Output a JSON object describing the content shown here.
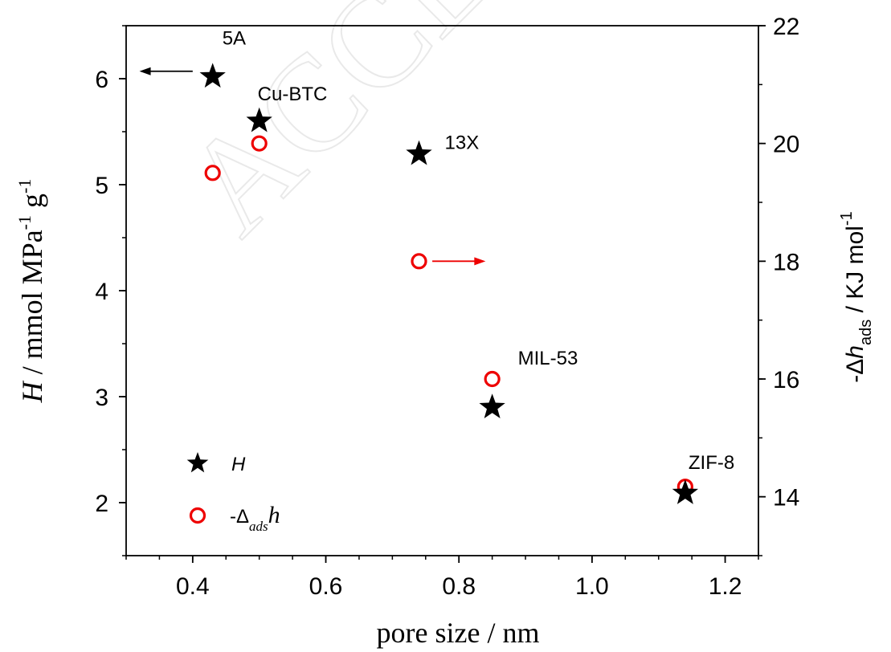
{
  "chart_data": {
    "type": "scatter",
    "title": "",
    "watermark": "ACCEPTED",
    "xlabel": "pore size / nm",
    "y_left_label": {
      "symbol": "H",
      "text": " / mmol MPa",
      "sup1": "-1",
      "text2": " g",
      "sup2": "-1"
    },
    "y_right_label": {
      "prefix": "-Δ",
      "symbol": "h",
      "sub": "ads",
      "text": " / KJ mol",
      "sup": "-1"
    },
    "xlim": [
      0.3,
      1.25
    ],
    "ylim_left": [
      1.5,
      6.5
    ],
    "ylim_right": [
      13,
      22
    ],
    "x_ticks": [
      {
        "v": 0.4,
        "label": "0.4"
      },
      {
        "v": 0.6,
        "label": "0.6"
      },
      {
        "v": 0.8,
        "label": "0.8"
      },
      {
        "v": 1.0,
        "label": "1.0"
      },
      {
        "v": 1.2,
        "label": "1.2"
      }
    ],
    "y_left_ticks": [
      {
        "v": 2,
        "label": "2"
      },
      {
        "v": 3,
        "label": "3"
      },
      {
        "v": 4,
        "label": "4"
      },
      {
        "v": 5,
        "label": "5"
      },
      {
        "v": 6,
        "label": "6"
      }
    ],
    "y_right_ticks": [
      {
        "v": 14,
        "label": "14"
      },
      {
        "v": 16,
        "label": "16"
      },
      {
        "v": 18,
        "label": "18"
      },
      {
        "v": 20,
        "label": "20"
      },
      {
        "v": 22,
        "label": "22"
      }
    ],
    "series": [
      {
        "name": "H",
        "axis": "left",
        "marker": "filled-star",
        "color": "#000000",
        "points": [
          {
            "x": 0.43,
            "y": 6.02
          },
          {
            "x": 0.5,
            "y": 5.6
          },
          {
            "x": 0.74,
            "y": 5.29
          },
          {
            "x": 0.85,
            "y": 2.9
          },
          {
            "x": 1.14,
            "y": 2.09
          }
        ]
      },
      {
        "name": "-Δadsh",
        "axis": "right",
        "marker": "open-circle",
        "color": "#ee0000",
        "points": [
          {
            "x": 0.43,
            "y": 19.5
          },
          {
            "x": 0.5,
            "y": 20.0
          },
          {
            "x": 0.74,
            "y": 18.0
          },
          {
            "x": 0.85,
            "y": 16.0
          },
          {
            "x": 1.14,
            "y": 14.17
          }
        ]
      }
    ],
    "annotations": [
      {
        "text": "5A",
        "x": 0.43,
        "y": 6.02,
        "axis": "left",
        "pos": "above-right"
      },
      {
        "text": "Cu-BTC",
        "x": 0.5,
        "y": 5.6,
        "axis": "left",
        "pos": "above"
      },
      {
        "text": "13X",
        "x": 0.74,
        "y": 5.29,
        "axis": "left",
        "pos": "right"
      },
      {
        "text": "MIL-53",
        "x": 0.85,
        "y": 16.0,
        "axis": "right",
        "pos": "above-right"
      },
      {
        "text": "ZIF-8",
        "x": 1.14,
        "y": 14.17,
        "axis": "right",
        "pos": "above"
      }
    ],
    "axis_arrows": [
      {
        "points_to": "left",
        "color": "#000000",
        "x_from": 0.4,
        "x_to": 0.32,
        "y": 6.07,
        "axis": "left"
      },
      {
        "points_to": "right",
        "color": "#ee0000",
        "x_from": 0.76,
        "x_to": 0.84,
        "y": 18.0,
        "axis": "right"
      }
    ],
    "legend": {
      "placement": "bottom-left",
      "entries": [
        {
          "marker": "filled-star",
          "label": "H"
        },
        {
          "marker": "open-circle",
          "label_prefix": "-Δ",
          "label_sub": "ads",
          "label_main": "h"
        }
      ]
    }
  }
}
